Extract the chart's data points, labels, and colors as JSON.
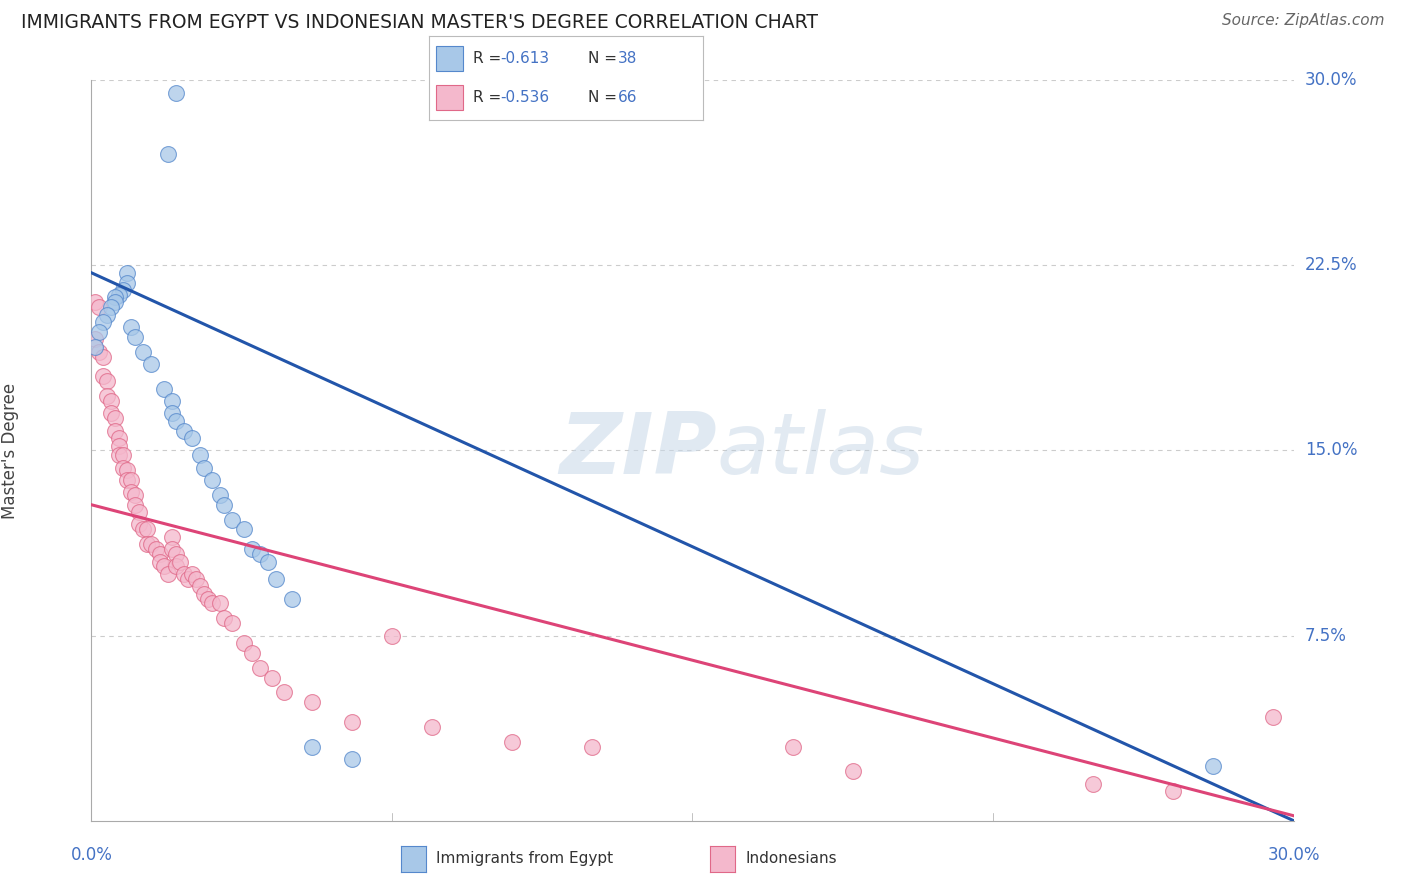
{
  "title": "IMMIGRANTS FROM EGYPT VS INDONESIAN MASTER'S DEGREE CORRELATION CHART",
  "source": "Source: ZipAtlas.com",
  "ylabel": "Master's Degree",
  "legend_blue_r": "-0.613",
  "legend_blue_n": "38",
  "legend_pink_r": "-0.536",
  "legend_pink_n": "66",
  "legend_label_blue": "Immigrants from Egypt",
  "legend_label_pink": "Indonesians",
  "blue_color": "#a8c8e8",
  "pink_color": "#f4b8cc",
  "blue_edge_color": "#5588cc",
  "pink_edge_color": "#e06888",
  "blue_line_color": "#2255aa",
  "pink_line_color": "#dd4477",
  "axis_label_color": "#4472c4",
  "watermark_color": "#dde8f0",
  "xlim": [
    0.0,
    0.3
  ],
  "ylim": [
    0.0,
    0.3
  ],
  "blue_scatter_x": [
    0.021,
    0.019,
    0.009,
    0.009,
    0.008,
    0.007,
    0.006,
    0.006,
    0.005,
    0.004,
    0.003,
    0.002,
    0.001,
    0.01,
    0.011,
    0.013,
    0.015,
    0.018,
    0.02,
    0.02,
    0.021,
    0.023,
    0.025,
    0.027,
    0.028,
    0.03,
    0.032,
    0.033,
    0.035,
    0.038,
    0.04,
    0.042,
    0.044,
    0.046,
    0.05,
    0.055,
    0.065,
    0.28
  ],
  "blue_scatter_y": [
    0.295,
    0.27,
    0.222,
    0.218,
    0.215,
    0.213,
    0.212,
    0.21,
    0.208,
    0.205,
    0.202,
    0.198,
    0.192,
    0.2,
    0.196,
    0.19,
    0.185,
    0.175,
    0.17,
    0.165,
    0.162,
    0.158,
    0.155,
    0.148,
    0.143,
    0.138,
    0.132,
    0.128,
    0.122,
    0.118,
    0.11,
    0.108,
    0.105,
    0.098,
    0.09,
    0.03,
    0.025,
    0.022
  ],
  "pink_scatter_x": [
    0.001,
    0.001,
    0.002,
    0.002,
    0.003,
    0.003,
    0.004,
    0.004,
    0.005,
    0.005,
    0.006,
    0.006,
    0.007,
    0.007,
    0.007,
    0.008,
    0.008,
    0.009,
    0.009,
    0.01,
    0.01,
    0.011,
    0.011,
    0.012,
    0.012,
    0.013,
    0.014,
    0.014,
    0.015,
    0.016,
    0.017,
    0.017,
    0.018,
    0.019,
    0.02,
    0.02,
    0.021,
    0.021,
    0.022,
    0.023,
    0.024,
    0.025,
    0.026,
    0.027,
    0.028,
    0.029,
    0.03,
    0.032,
    0.033,
    0.035,
    0.038,
    0.04,
    0.042,
    0.045,
    0.048,
    0.055,
    0.065,
    0.075,
    0.085,
    0.105,
    0.125,
    0.175,
    0.19,
    0.25,
    0.27,
    0.295
  ],
  "pink_scatter_y": [
    0.21,
    0.195,
    0.208,
    0.19,
    0.188,
    0.18,
    0.178,
    0.172,
    0.17,
    0.165,
    0.163,
    0.158,
    0.155,
    0.152,
    0.148,
    0.148,
    0.143,
    0.142,
    0.138,
    0.138,
    0.133,
    0.132,
    0.128,
    0.125,
    0.12,
    0.118,
    0.118,
    0.112,
    0.112,
    0.11,
    0.108,
    0.105,
    0.103,
    0.1,
    0.115,
    0.11,
    0.108,
    0.103,
    0.105,
    0.1,
    0.098,
    0.1,
    0.098,
    0.095,
    0.092,
    0.09,
    0.088,
    0.088,
    0.082,
    0.08,
    0.072,
    0.068,
    0.062,
    0.058,
    0.052,
    0.048,
    0.04,
    0.075,
    0.038,
    0.032,
    0.03,
    0.03,
    0.02,
    0.015,
    0.012,
    0.042
  ],
  "blue_line_x0": 0.0,
  "blue_line_y0": 0.222,
  "blue_line_x1": 0.3,
  "blue_line_y1": 0.0,
  "pink_line_x0": 0.0,
  "pink_line_y0": 0.128,
  "pink_line_x1": 0.3,
  "pink_line_y1": 0.002,
  "grid_color": "#cccccc",
  "bg_color": "#ffffff"
}
